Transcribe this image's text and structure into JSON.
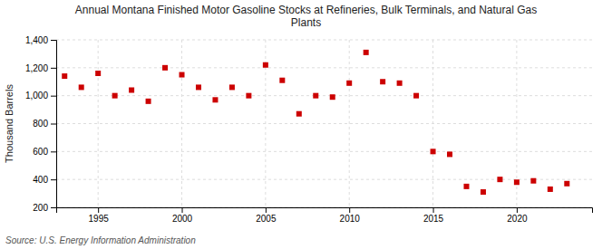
{
  "chart_data": {
    "type": "scatter",
    "title": "Annual Montana Finished Motor Gasoline Stocks at Refineries, Bulk Terminals, and Natural Gas\nPlants",
    "ylabel": "Thousand Barrels",
    "source": "Source: U.S. Energy Information Administration",
    "x": [
      1993,
      1994,
      1995,
      1996,
      1997,
      1998,
      1999,
      2000,
      2001,
      2002,
      2003,
      2004,
      2005,
      2006,
      2007,
      2008,
      2009,
      2010,
      2011,
      2012,
      2013,
      2014,
      2015,
      2016,
      2017,
      2018,
      2019,
      2020,
      2021,
      2022,
      2023
    ],
    "values": [
      1140,
      1060,
      1160,
      1000,
      1040,
      960,
      1200,
      1150,
      1060,
      970,
      1060,
      1000,
      1220,
      1110,
      870,
      1000,
      990,
      1090,
      1310,
      1100,
      1090,
      1000,
      600,
      580,
      350,
      310,
      400,
      380,
      390,
      330,
      370
    ],
    "color": "#cc0000",
    "marker": "square",
    "xlim": [
      1992.5,
      2024.5
    ],
    "xticks": [
      1995,
      2000,
      2005,
      2010,
      2015,
      2020
    ],
    "ylim": [
      200,
      1400
    ],
    "yticks": [
      200,
      400,
      600,
      800,
      {
        "value": 1000,
        "label": "1,000"
      },
      {
        "value": 1200,
        "label": "1,200"
      },
      {
        "value": 1400,
        "label": "1,400"
      }
    ],
    "grid": true
  }
}
